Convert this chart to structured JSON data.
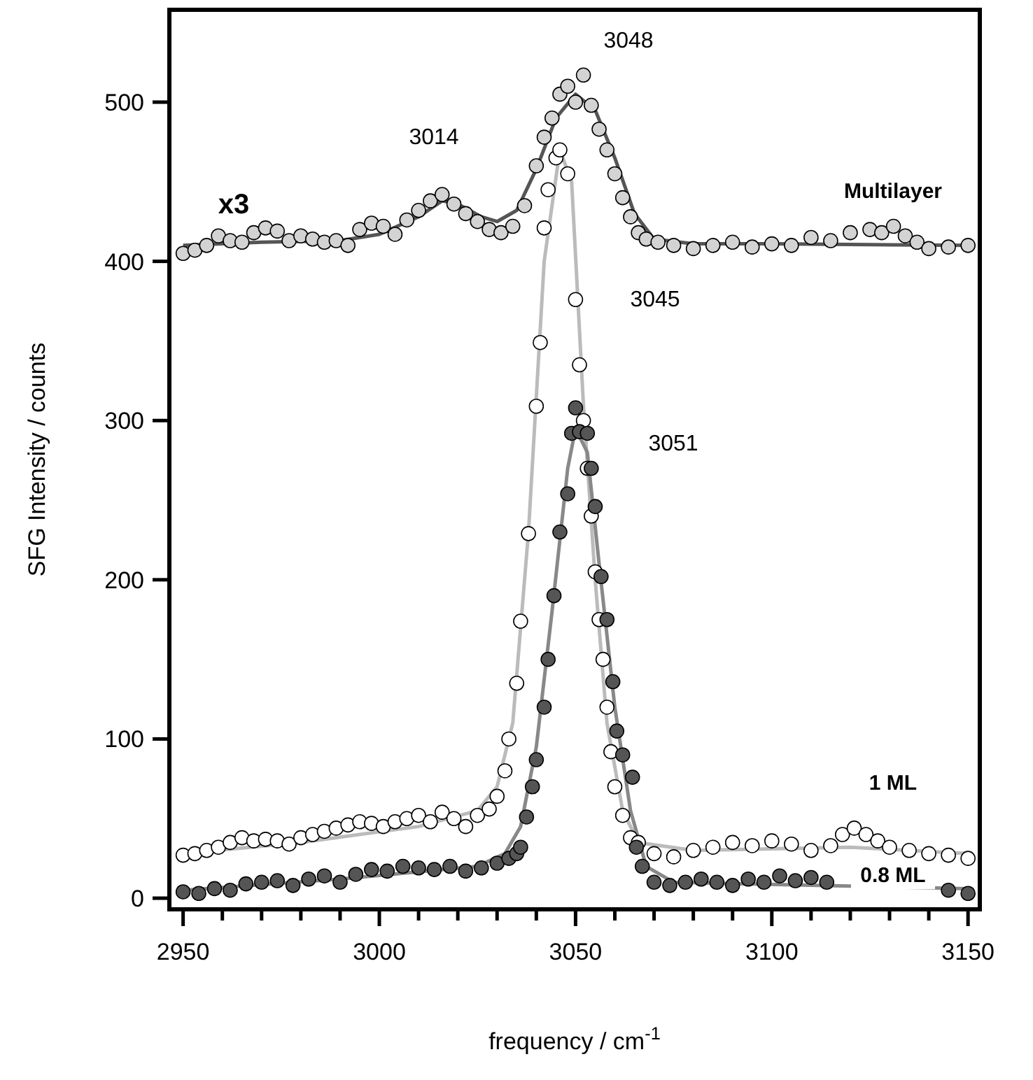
{
  "chart_data": {
    "type": "scatter",
    "xlabel": "frequency / cm$^{-1}$",
    "ylabel": "SFG Intensity / counts",
    "xlim": [
      2946.5,
      3153
    ],
    "ylim": [
      -7,
      558
    ],
    "xticks": [
      2950,
      {
        "value": 2960,
        "label": null
      },
      {
        "value": 2970,
        "label": null
      },
      {
        "value": 2980,
        "label": null
      },
      {
        "value": 2990,
        "label": null
      },
      3000,
      {
        "value": 3010,
        "label": null
      },
      {
        "value": 3020,
        "label": null
      },
      {
        "value": 3030,
        "label": null
      },
      {
        "value": 3040,
        "label": null
      },
      3050,
      {
        "value": 3060,
        "label": null
      },
      {
        "value": 3070,
        "label": null
      },
      {
        "value": 3080,
        "label": null
      },
      {
        "value": 3090,
        "label": null
      },
      3100,
      {
        "value": 3110,
        "label": null
      },
      {
        "value": 3120,
        "label": null
      },
      {
        "value": 3130,
        "label": null
      },
      {
        "value": 3140,
        "label": null
      },
      3150
    ],
    "yticks": [
      0,
      100,
      200,
      300,
      400,
      500
    ],
    "grid": false,
    "series": [
      {
        "name": "Multilayer",
        "marker": "circle",
        "color": "#d3d3d3",
        "x": [
          2950,
          2953,
          2956,
          2959,
          2962,
          2965,
          2968,
          2971,
          2974,
          2977,
          2980,
          2983,
          2986,
          2989,
          2992,
          2995,
          2998,
          3001,
          3004,
          3007,
          3010,
          3013,
          3016,
          3019,
          3022,
          3025,
          3028,
          3031,
          3034,
          3037,
          3040,
          3042,
          3044,
          3046,
          3048,
          3050,
          3052,
          3054,
          3056,
          3058,
          3060,
          3062,
          3064,
          3066,
          3068,
          3071,
          3075,
          3080,
          3085,
          3090,
          3095,
          3100,
          3105,
          3110,
          3115,
          3120,
          3125,
          3128,
          3131,
          3134,
          3137,
          3140,
          3145,
          3150
        ],
        "values": [
          405,
          407,
          410,
          416,
          413,
          412,
          418,
          421,
          419,
          413,
          416,
          414,
          412,
          413,
          410,
          420,
          424,
          422,
          417,
          426,
          432,
          438,
          442,
          436,
          430,
          425,
          420,
          418,
          422,
          435,
          460,
          478,
          490,
          505,
          510,
          500,
          517,
          498,
          483,
          470,
          455,
          440,
          428,
          418,
          414,
          412,
          410,
          408,
          410,
          412,
          409,
          411,
          410,
          415,
          413,
          418,
          420,
          418,
          422,
          416,
          412,
          408,
          409,
          410
        ]
      },
      {
        "type": "line",
        "color": "#555555",
        "x": [
          2950,
          2970,
          2990,
          3000,
          3010,
          3016,
          3020,
          3026,
          3030,
          3035,
          3040,
          3045,
          3050,
          3055,
          3060,
          3065,
          3070,
          3080,
          3100,
          3150
        ],
        "values": [
          410,
          412,
          413,
          417,
          428,
          438,
          436,
          428,
          425,
          432,
          458,
          490,
          505,
          495,
          465,
          430,
          414,
          411,
          411,
          410
        ]
      },
      {
        "name": "1 ML",
        "marker": "circle",
        "color": "#ffffff",
        "x": [
          2950,
          2953,
          2956,
          2959,
          2962,
          2965,
          2968,
          2971,
          2974,
          2977,
          2980,
          2983,
          2986,
          2989,
          2992,
          2995,
          2998,
          3001,
          3004,
          3007,
          3010,
          3013,
          3016,
          3019,
          3022,
          3025,
          3028,
          3030,
          3032,
          3033,
          3035,
          3036,
          3038,
          3040,
          3041,
          3042,
          3043,
          3045,
          3046,
          3048,
          3050,
          3051,
          3052,
          3053,
          3054,
          3055,
          3056,
          3057,
          3058,
          3059,
          3060,
          3062,
          3064,
          3066,
          3070,
          3075,
          3080,
          3085,
          3090,
          3095,
          3100,
          3105,
          3110,
          3115,
          3118,
          3121,
          3124,
          3127,
          3130,
          3135,
          3140,
          3145,
          3150
        ],
        "values": [
          27,
          28,
          30,
          32,
          35,
          38,
          36,
          37,
          36,
          34,
          38,
          40,
          42,
          44,
          46,
          48,
          47,
          45,
          48,
          50,
          52,
          48,
          54,
          50,
          45,
          52,
          56,
          64,
          80,
          100,
          135,
          174,
          229,
          309,
          349,
          421,
          445,
          465,
          470,
          455,
          376,
          335,
          300,
          270,
          240,
          205,
          175,
          150,
          120,
          92,
          70,
          52,
          38,
          35,
          28,
          26,
          30,
          32,
          35,
          33,
          36,
          34,
          30,
          33,
          40,
          44,
          40,
          36,
          32,
          30,
          28,
          27,
          25
        ]
      },
      {
        "type": "line",
        "color": "#bbbbbb",
        "x": [
          2950,
          2980,
          3010,
          3025,
          3030,
          3034,
          3038,
          3042,
          3046,
          3049,
          3052,
          3055,
          3058,
          3062,
          3066,
          3080,
          3120,
          3150
        ],
        "values": [
          28,
          35,
          45,
          55,
          70,
          110,
          230,
          400,
          470,
          450,
          310,
          200,
          110,
          55,
          35,
          30,
          32,
          28
        ]
      },
      {
        "name": "0.8 ML",
        "marker": "circle",
        "color": "#555555",
        "x": [
          2950,
          2954,
          2958,
          2962,
          2966,
          2970,
          2974,
          2978,
          2982,
          2986,
          2990,
          2994,
          2998,
          3002,
          3006,
          3010,
          3014,
          3018,
          3022,
          3026,
          3030,
          3033,
          3035,
          3036,
          3037.5,
          3039,
          3040,
          3042,
          3043,
          3044.5,
          3046,
          3048,
          3049,
          3050,
          3051,
          3053,
          3054,
          3055,
          3056.5,
          3058,
          3059.5,
          3060.5,
          3062,
          3064.5,
          3065.5,
          3067,
          3070,
          3074,
          3078,
          3082,
          3086,
          3090,
          3094,
          3098,
          3102,
          3106,
          3110,
          3114,
          3145,
          3150
        ],
        "values": [
          4,
          3,
          6,
          5,
          9,
          10,
          11,
          8,
          12,
          14,
          10,
          15,
          18,
          17,
          20,
          19,
          18,
          20,
          17,
          19,
          22,
          25,
          28,
          32,
          51,
          70,
          87,
          120,
          150,
          190,
          230,
          254,
          292,
          308,
          293,
          292,
          270,
          246,
          202,
          175,
          136,
          105,
          90,
          76,
          32,
          20,
          10,
          8,
          10,
          12,
          10,
          8,
          12,
          10,
          14,
          11,
          13,
          10,
          5,
          3
        ]
      },
      {
        "type": "line",
        "color": "#888888",
        "x": [
          2950,
          2990,
          3025,
          3032,
          3036,
          3040,
          3044,
          3048,
          3050,
          3053,
          3056,
          3060,
          3064,
          3068,
          3075,
          3150
        ],
        "values": [
          5,
          12,
          20,
          28,
          45,
          95,
          180,
          270,
          295,
          280,
          210,
          120,
          55,
          20,
          10,
          6
        ]
      }
    ],
    "annotations": [
      "x3",
      "3014",
      "3048",
      "3045",
      "3051"
    ]
  }
}
